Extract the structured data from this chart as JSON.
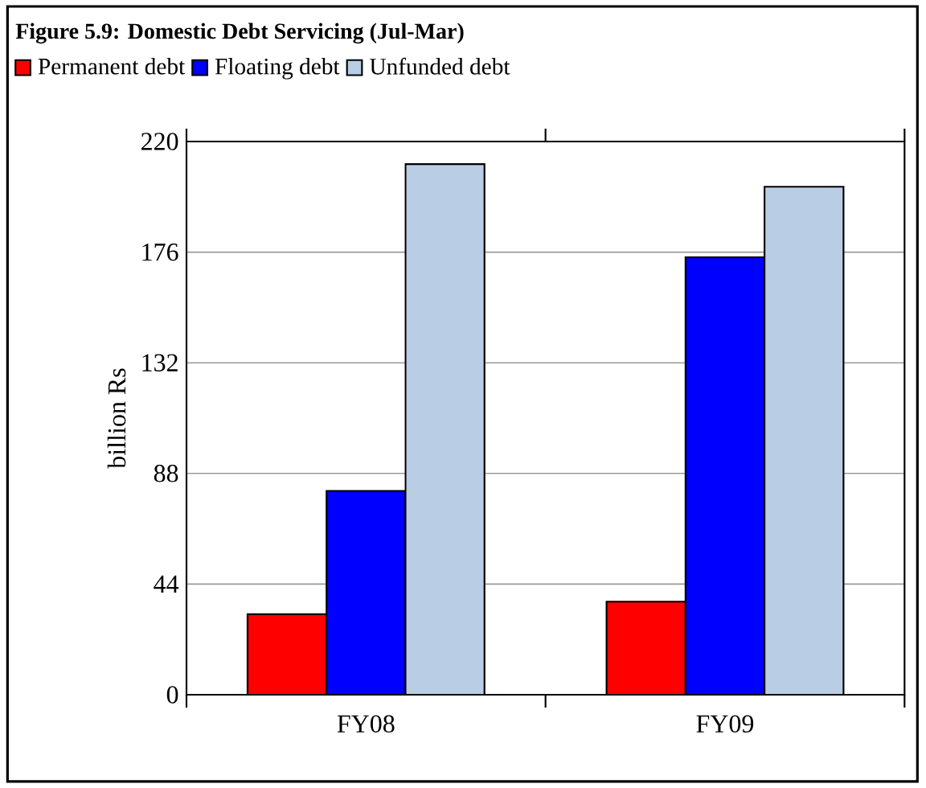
{
  "chart_data": {
    "type": "bar",
    "title": "Figure 5.9: Domestic Debt Servicing (Jul-Mar)",
    "ylabel": "billion Rs",
    "categories": [
      "FY08",
      "FY09"
    ],
    "series": [
      {
        "name": "Permanent debt",
        "color": "#ff0000",
        "values": [
          32,
          37
        ]
      },
      {
        "name": "Floating debt",
        "color": "#0000ff",
        "values": [
          81,
          174
        ]
      },
      {
        "name": "Unfunded debt",
        "color": "#b9cde5",
        "values": [
          211,
          202
        ]
      }
    ],
    "ylim": [
      0,
      220
    ],
    "yticks": [
      0,
      44,
      88,
      132,
      176,
      220
    ],
    "grid": "y",
    "legend": "top left"
  }
}
